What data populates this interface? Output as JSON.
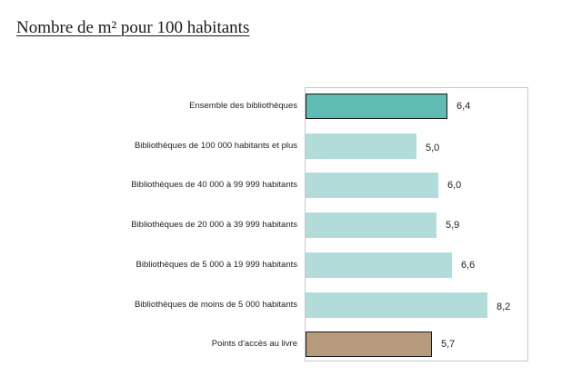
{
  "title": "Nombre de m² pour 100 habitants",
  "chart_data": {
    "type": "bar",
    "orientation": "horizontal",
    "title": "Nombre de m² pour 100 habitants",
    "xlabel": "",
    "ylabel": "",
    "categories": [
      "Ensemble des bibliothèques",
      "Bibliothèques de 100 000 habitants et plus",
      "Bibliothèques de 40 000 à 99 999 habitants",
      "Bibliothèques de 20 000 à 39 999 habitants",
      "Bibliothèques de 5 000 à 19 999 habitants",
      "Bibliothèques de moins de 5 000 habitants",
      "Points d'accès au livre"
    ],
    "values": [
      6.4,
      5.0,
      6.0,
      5.9,
      6.6,
      8.2,
      5.7
    ],
    "value_labels": [
      "6,4",
      "5,0",
      "6,0",
      "5,9",
      "6,6",
      "8,2",
      "5,7"
    ],
    "colors": [
      "#5fbcb3",
      "#b2dcda",
      "#b2dcda",
      "#b2dcda",
      "#b2dcda",
      "#b2dcda",
      "#b69b7c"
    ],
    "grid": false,
    "legend": null
  }
}
